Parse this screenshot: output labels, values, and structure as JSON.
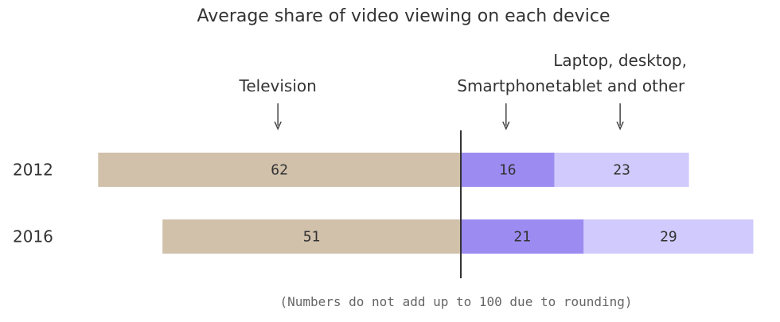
{
  "chart_data": {
    "type": "bar",
    "orientation": "horizontal",
    "stacking": "diverging",
    "title": "Average share of video viewing on each device",
    "categories": [
      "2012",
      "2016"
    ],
    "series": [
      {
        "name": "Television",
        "label_lines": [
          "Television"
        ],
        "values": [
          62,
          51
        ],
        "color": "#d1c1ab",
        "side": "left"
      },
      {
        "name": "Smartphone",
        "label_lines": [
          "Smartphone"
        ],
        "values": [
          16,
          21
        ],
        "color": "#9c8cf2",
        "side": "right"
      },
      {
        "name": "Laptop, desktop, tablet and other",
        "label_lines": [
          "Laptop, desktop,",
          "tablet and other"
        ],
        "values": [
          23,
          29
        ],
        "color": "#d0cbfc",
        "side": "right"
      }
    ],
    "note": "(Numbers do not add up to 100 due to rounding)",
    "xlabel": "",
    "ylabel": ""
  },
  "colors": {
    "text": "#333333",
    "note": "#666666",
    "axis": "#333333",
    "arrow": "#444444"
  }
}
